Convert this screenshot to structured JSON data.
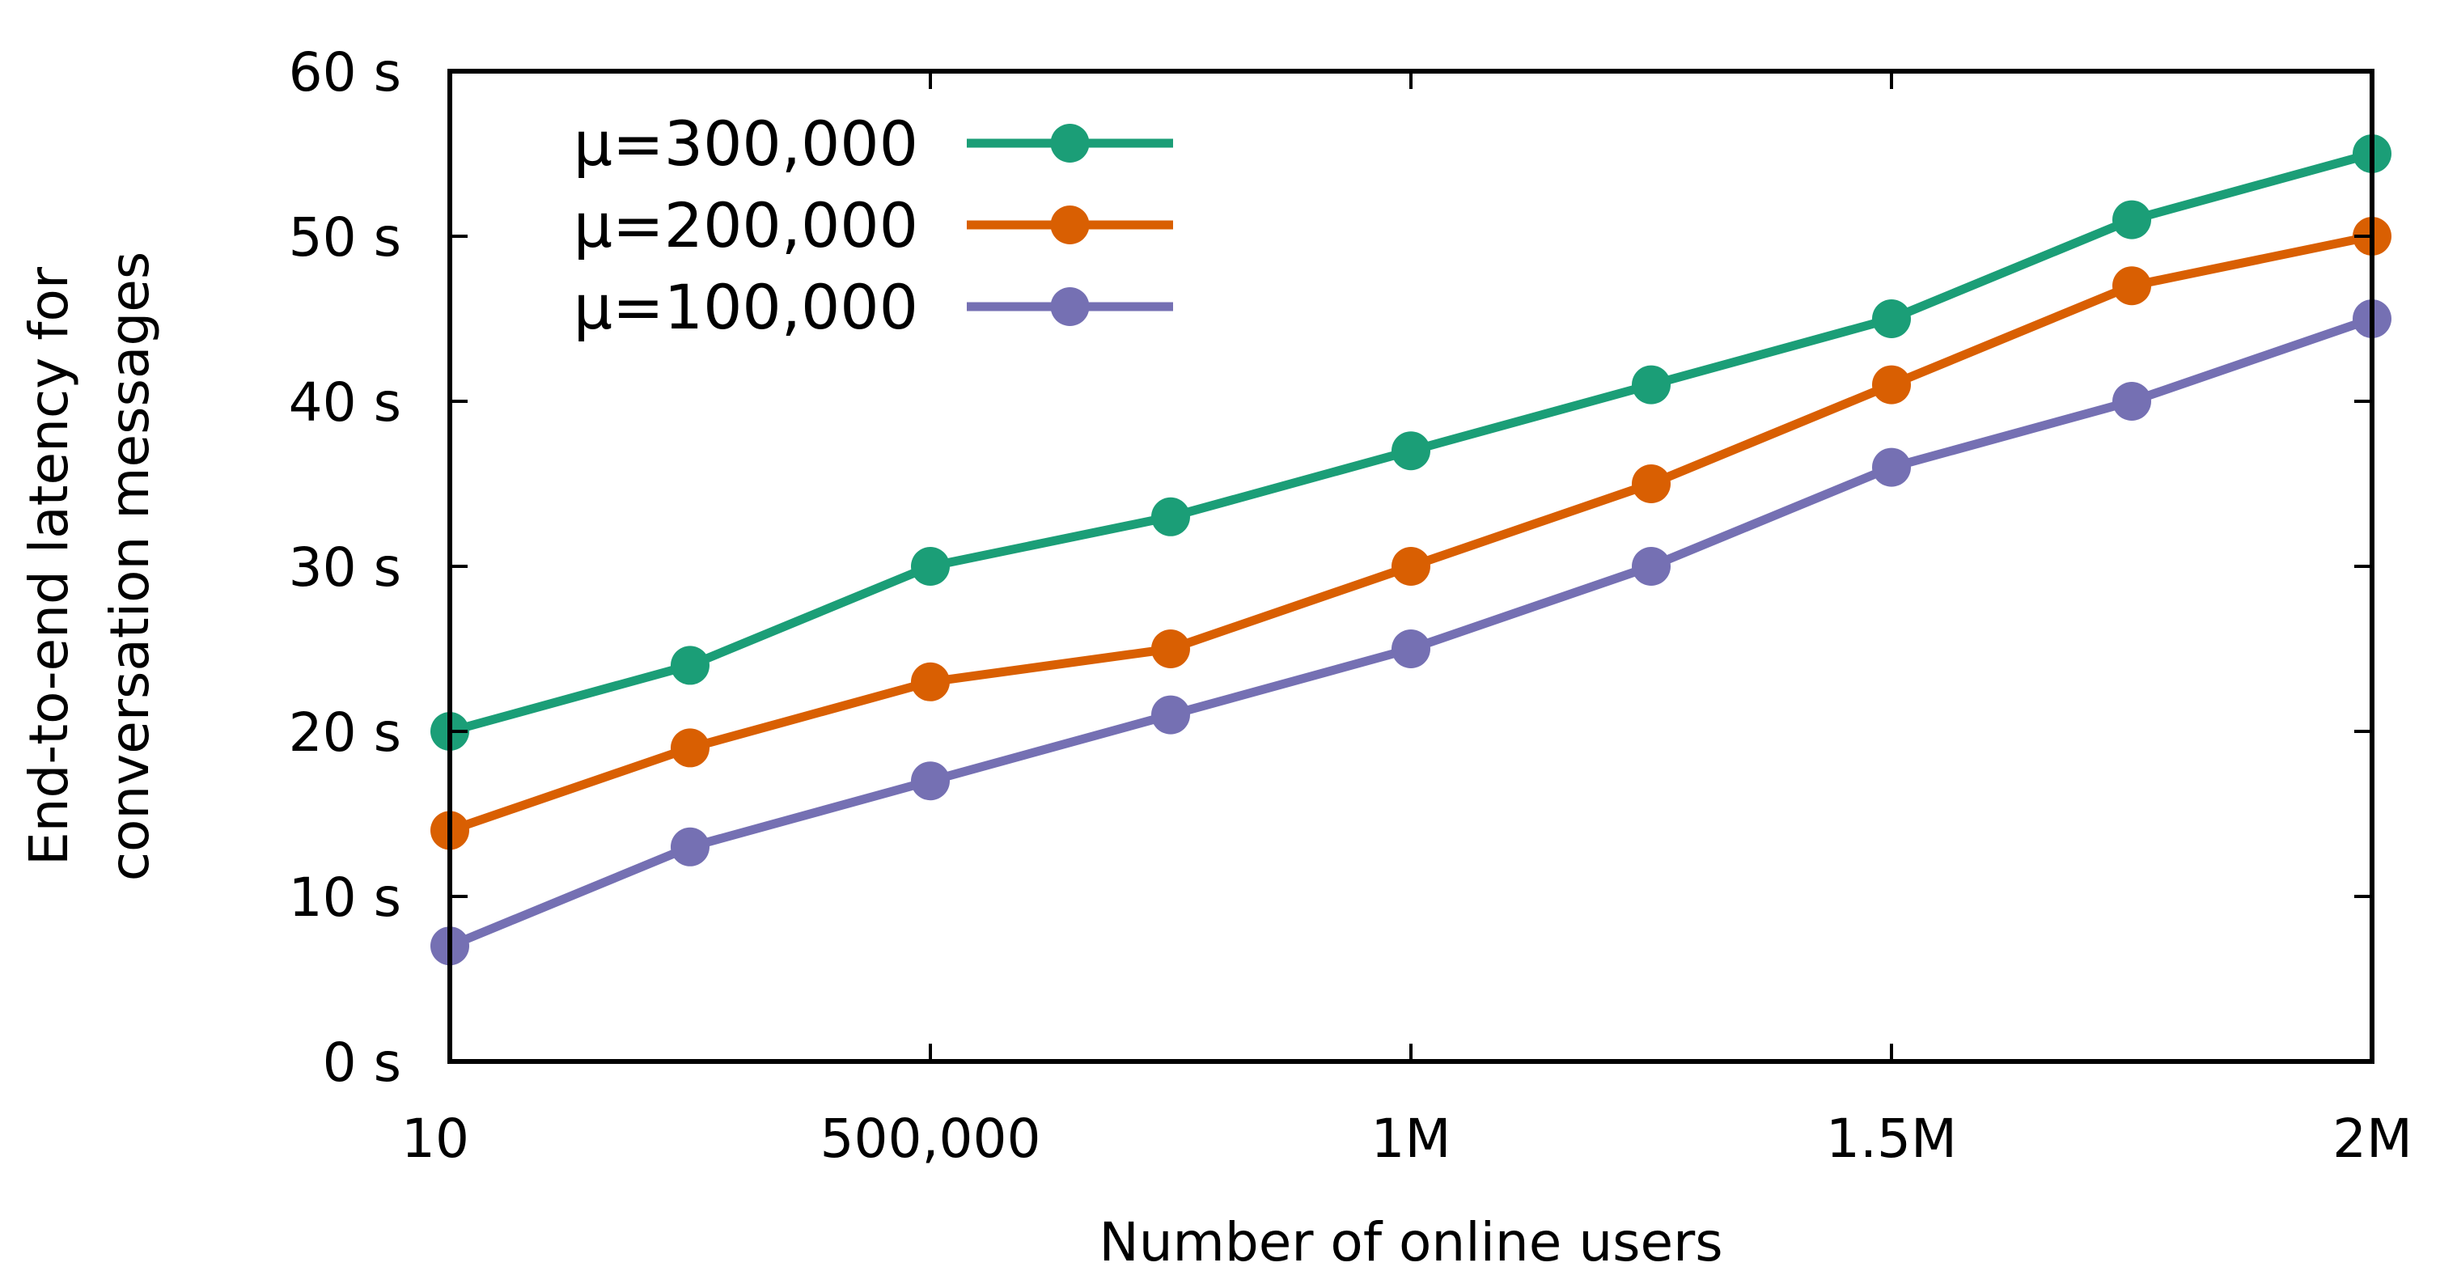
{
  "chart_data": {
    "type": "line",
    "title": "",
    "xlabel": "Number of online users",
    "ylabel_lines": [
      "End-to-end latency for",
      "conversation messages"
    ],
    "x": [
      10,
      250000,
      500000,
      750000,
      1000000,
      1250000,
      1500000,
      1750000,
      2000000
    ],
    "xlim": [
      10,
      2000000
    ],
    "ylim": [
      0,
      60
    ],
    "x_ticks": [
      {
        "value": 10,
        "label": "10"
      },
      {
        "value": 500000,
        "label": "500,000"
      },
      {
        "value": 1000000,
        "label": "1M"
      },
      {
        "value": 1500000,
        "label": "1.5M"
      },
      {
        "value": 2000000,
        "label": "2M"
      }
    ],
    "y_ticks": [
      {
        "value": 0,
        "label": "0 s"
      },
      {
        "value": 10,
        "label": "10 s"
      },
      {
        "value": 20,
        "label": "20 s"
      },
      {
        "value": 30,
        "label": "30 s"
      },
      {
        "value": 40,
        "label": "40 s"
      },
      {
        "value": 50,
        "label": "50 s"
      },
      {
        "value": 60,
        "label": "60 s"
      }
    ],
    "grid": false,
    "legend_position": "top-left",
    "series": [
      {
        "name": "μ=300,000",
        "color": "#1b9e77",
        "values": [
          20,
          24,
          30,
          33,
          37,
          41,
          45,
          51,
          55
        ]
      },
      {
        "name": "μ=200,000",
        "color": "#d95f02",
        "values": [
          14,
          19,
          23,
          25,
          30,
          35,
          41,
          47,
          50
        ]
      },
      {
        "name": "μ=100,000",
        "color": "#7570b3",
        "values": [
          7,
          13,
          17,
          21,
          25,
          30,
          36,
          40,
          45
        ]
      }
    ]
  }
}
